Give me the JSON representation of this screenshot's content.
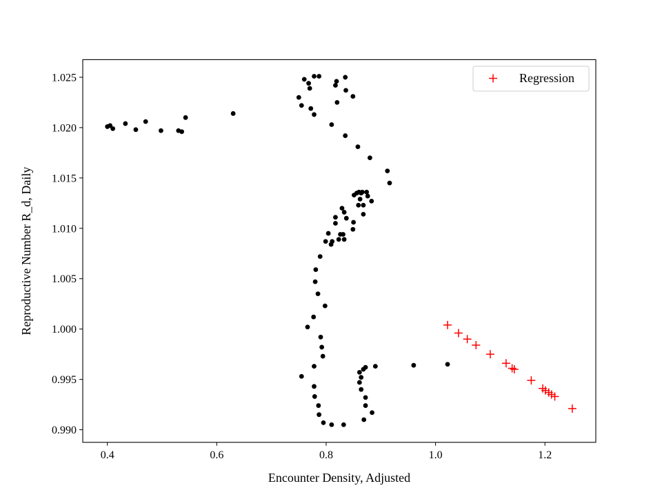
{
  "chart_data": {
    "type": "scatter",
    "xlabel": "Encounter Density, Adjusted",
    "ylabel": "Reproductive Number R_d, Daily",
    "xlim": [
      0.355,
      1.293
    ],
    "ylim": [
      0.98875,
      1.02675
    ],
    "xticks": [
      "0.4",
      "0.6",
      "0.8",
      "1.0",
      "1.2"
    ],
    "xtick_values": [
      0.4,
      0.6,
      0.8,
      1.0,
      1.2
    ],
    "yticks": [
      "0.990",
      "0.995",
      "1.000",
      "1.005",
      "1.010",
      "1.015",
      "1.020",
      "1.025"
    ],
    "ytick_values": [
      0.99,
      0.995,
      1.0,
      1.005,
      1.01,
      1.015,
      1.02,
      1.025
    ],
    "grid": false,
    "legend_position": "top-right",
    "series": [
      {
        "marker": "dot",
        "color": "#000000",
        "points": [
          [
            0.4,
            1.0201
          ],
          [
            0.405,
            1.0202
          ],
          [
            0.41,
            1.0199
          ],
          [
            0.433,
            1.0204
          ],
          [
            0.452,
            1.0198
          ],
          [
            0.47,
            1.0206
          ],
          [
            0.498,
            1.0197
          ],
          [
            0.53,
            1.0197
          ],
          [
            0.536,
            1.0196
          ],
          [
            0.543,
            1.021
          ],
          [
            0.63,
            1.0214
          ],
          [
            0.75,
            1.023
          ],
          [
            0.755,
            1.0222
          ],
          [
            0.76,
            1.0248
          ],
          [
            0.768,
            1.0244
          ],
          [
            0.77,
            1.0239
          ],
          [
            0.772,
            1.0219
          ],
          [
            0.778,
            1.0251
          ],
          [
            0.778,
            1.0213
          ],
          [
            0.787,
            1.0251
          ],
          [
            0.81,
            1.0203
          ],
          [
            0.817,
            1.0242
          ],
          [
            0.819,
            1.0246
          ],
          [
            0.82,
            1.0225
          ],
          [
            0.835,
            1.025
          ],
          [
            0.836,
            1.0237
          ],
          [
            0.835,
            1.0192
          ],
          [
            0.849,
            1.0231
          ],
          [
            0.858,
            1.0181
          ],
          [
            0.88,
            1.017
          ],
          [
            0.912,
            1.0157
          ],
          [
            0.916,
            1.0145
          ],
          [
            0.851,
            1.0133
          ],
          [
            0.856,
            1.0135
          ],
          [
            0.86,
            1.0136
          ],
          [
            0.864,
            1.0135
          ],
          [
            0.866,
            1.0136
          ],
          [
            0.874,
            1.0136
          ],
          [
            0.876,
            1.0132
          ],
          [
            0.862,
            1.0129
          ],
          [
            0.883,
            1.0127
          ],
          [
            0.859,
            1.0123
          ],
          [
            0.868,
            1.0123
          ],
          [
            0.829,
            1.012
          ],
          [
            0.833,
            1.0116
          ],
          [
            0.868,
            1.0114
          ],
          [
            0.817,
            1.0111
          ],
          [
            0.837,
            1.011
          ],
          [
            0.85,
            1.0106
          ],
          [
            0.817,
            1.0105
          ],
          [
            0.849,
            1.0099
          ],
          [
            0.826,
            1.0094
          ],
          [
            0.831,
            1.0094
          ],
          [
            0.804,
            1.0095
          ],
          [
            0.811,
            1.0087
          ],
          [
            0.799,
            1.0087
          ],
          [
            0.823,
            1.0089
          ],
          [
            0.833,
            1.0089
          ],
          [
            0.809,
            1.0084
          ],
          [
            0.789,
            1.0072
          ],
          [
            0.781,
            1.0059
          ],
          [
            0.78,
            1.0047
          ],
          [
            0.785,
            1.0035
          ],
          [
            0.798,
            1.0023
          ],
          [
            0.777,
            1.0012
          ],
          [
            0.766,
            1.0002
          ],
          [
            0.79,
            0.9992
          ],
          [
            0.792,
            0.9982
          ],
          [
            0.794,
            0.9973
          ],
          [
            0.778,
            0.9963
          ],
          [
            0.755,
            0.9953
          ],
          [
            0.778,
            0.9943
          ],
          [
            0.779,
            0.9933
          ],
          [
            0.786,
            0.9924
          ],
          [
            0.787,
            0.9915
          ],
          [
            0.795,
            0.9907
          ],
          [
            0.81,
            0.9905
          ],
          [
            0.832,
            0.9905
          ],
          [
            0.869,
            0.991
          ],
          [
            0.884,
            0.9917
          ],
          [
            0.872,
            0.9924
          ],
          [
            0.872,
            0.9932
          ],
          [
            0.864,
            0.994
          ],
          [
            0.861,
            0.9947
          ],
          [
            0.864,
            0.9952
          ],
          [
            0.861,
            0.9957
          ],
          [
            0.868,
            0.996
          ],
          [
            0.872,
            0.9962
          ],
          [
            0.89,
            0.9963
          ],
          [
            0.96,
            0.9964
          ],
          [
            1.022,
            0.9965
          ]
        ]
      },
      {
        "name": "Regression",
        "marker": "plus",
        "color": "#ff0000",
        "points": [
          [
            1.022,
            1.0004
          ],
          [
            1.042,
            0.9996
          ],
          [
            1.058,
            0.999
          ],
          [
            1.074,
            0.9984
          ],
          [
            1.1,
            0.9975
          ],
          [
            1.129,
            0.9966
          ],
          [
            1.14,
            0.9961
          ],
          [
            1.144,
            0.996
          ],
          [
            1.175,
            0.9949
          ],
          [
            1.196,
            0.9941
          ],
          [
            1.201,
            0.9939
          ],
          [
            1.207,
            0.9937
          ],
          [
            1.212,
            0.9935
          ],
          [
            1.218,
            0.9933
          ],
          [
            1.25,
            0.9921
          ]
        ]
      }
    ]
  }
}
